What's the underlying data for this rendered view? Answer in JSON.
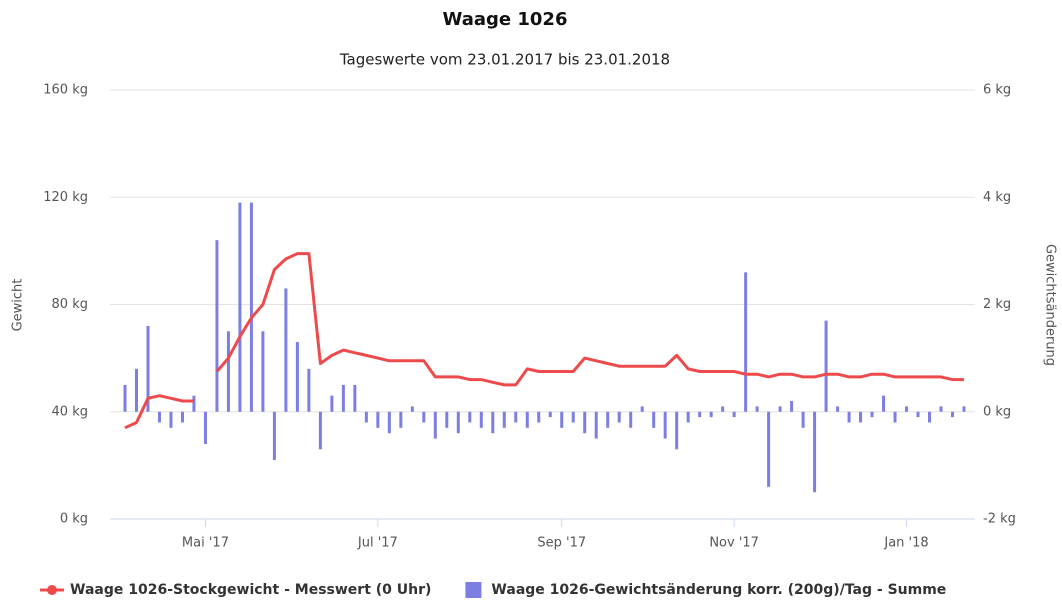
{
  "chart_data": {
    "type": "combo",
    "title": "Waage 1026",
    "subtitle": "Tageswerte vom 23.01.2017 bis 23.01.2018",
    "y_label": "Gewicht",
    "y2_label": "Gewichtsänderung",
    "categories": [
      null,
      null,
      null,
      null,
      null,
      null,
      null,
      "Mai '17",
      null,
      null,
      null,
      null,
      null,
      null,
      null,
      null,
      null,
      null,
      null,
      null,
      null,
      null,
      "Jul '17",
      null,
      null,
      null,
      null,
      null,
      null,
      null,
      null,
      null,
      null,
      null,
      null,
      null,
      null,
      null,
      "Sep '17",
      null,
      null,
      null,
      null,
      null,
      null,
      null,
      null,
      null,
      null,
      null,
      null,
      null,
      null,
      "Nov '17",
      null,
      null,
      null,
      null,
      null,
      null,
      null,
      null,
      null,
      null,
      null,
      null,
      null,
      null,
      "Jan '18",
      null,
      null,
      null,
      null,
      null
    ],
    "ylim": [
      0,
      160
    ],
    "yticks": [
      {
        "value": 0,
        "label": "0 kg"
      },
      {
        "value": 40,
        "label": "40 kg"
      },
      {
        "value": 80,
        "label": "80 kg"
      },
      {
        "value": 120,
        "label": "120 kg"
      },
      {
        "value": 160,
        "label": "160 kg"
      }
    ],
    "y2lim": [
      -2,
      6
    ],
    "y2ticks": [
      {
        "value": -2,
        "label": "-2 kg"
      },
      {
        "value": 0,
        "label": "0 kg"
      },
      {
        "value": 2,
        "label": "2 kg"
      },
      {
        "value": 4,
        "label": "4 kg"
      },
      {
        "value": 6,
        "label": "6 kg"
      }
    ],
    "grid": true,
    "legend": "bottom",
    "series": [
      {
        "name": "Waage 1026-Stockgewicht - Messwert (0 Uhr)",
        "type": "line",
        "color": "#ee4a4c",
        "values": [
          34,
          36,
          45,
          46,
          45,
          44,
          44,
          null,
          55,
          60,
          68,
          75,
          80,
          93,
          97,
          99,
          99,
          58,
          61,
          63,
          62,
          61,
          60,
          59,
          59,
          59,
          59,
          53,
          53,
          53,
          52,
          52,
          51,
          50,
          50,
          56,
          55,
          55,
          55,
          55,
          60,
          59,
          58,
          57,
          57,
          57,
          57,
          57,
          61,
          56,
          55,
          55,
          55,
          55,
          54,
          54,
          53,
          54,
          54,
          53,
          53,
          54,
          54,
          53,
          53,
          54,
          54,
          53,
          53,
          53,
          53,
          53,
          52,
          52
        ]
      },
      {
        "name": "Waage 1026-Gewichtsänderung korr. (200g)/Tag - Summe",
        "type": "bar",
        "axis": "y2",
        "color": "#7c7ee2",
        "values": [
          0.5,
          0.8,
          1.6,
          -0.2,
          -0.3,
          -0.2,
          0.3,
          -0.6,
          3.2,
          1.5,
          3.9,
          3.9,
          1.5,
          -0.9,
          2.3,
          1.3,
          0.8,
          -0.7,
          0.3,
          0.5,
          0.5,
          -0.2,
          -0.3,
          -0.4,
          -0.3,
          0.1,
          -0.2,
          -0.5,
          -0.3,
          -0.4,
          -0.2,
          -0.3,
          -0.4,
          -0.3,
          -0.2,
          -0.3,
          -0.2,
          -0.1,
          -0.3,
          -0.2,
          -0.4,
          -0.5,
          -0.3,
          -0.2,
          -0.3,
          0.1,
          -0.3,
          -0.5,
          -0.7,
          -0.2,
          -0.1,
          -0.1,
          0.1,
          -0.1,
          2.6,
          0.1,
          -1.4,
          0.1,
          0.2,
          -0.3,
          -1.5,
          1.7,
          0.1,
          -0.2,
          -0.2,
          -0.1,
          0.3,
          -0.2,
          0.1,
          -0.1,
          -0.2,
          0.1,
          -0.1,
          0.1
        ]
      }
    ]
  }
}
